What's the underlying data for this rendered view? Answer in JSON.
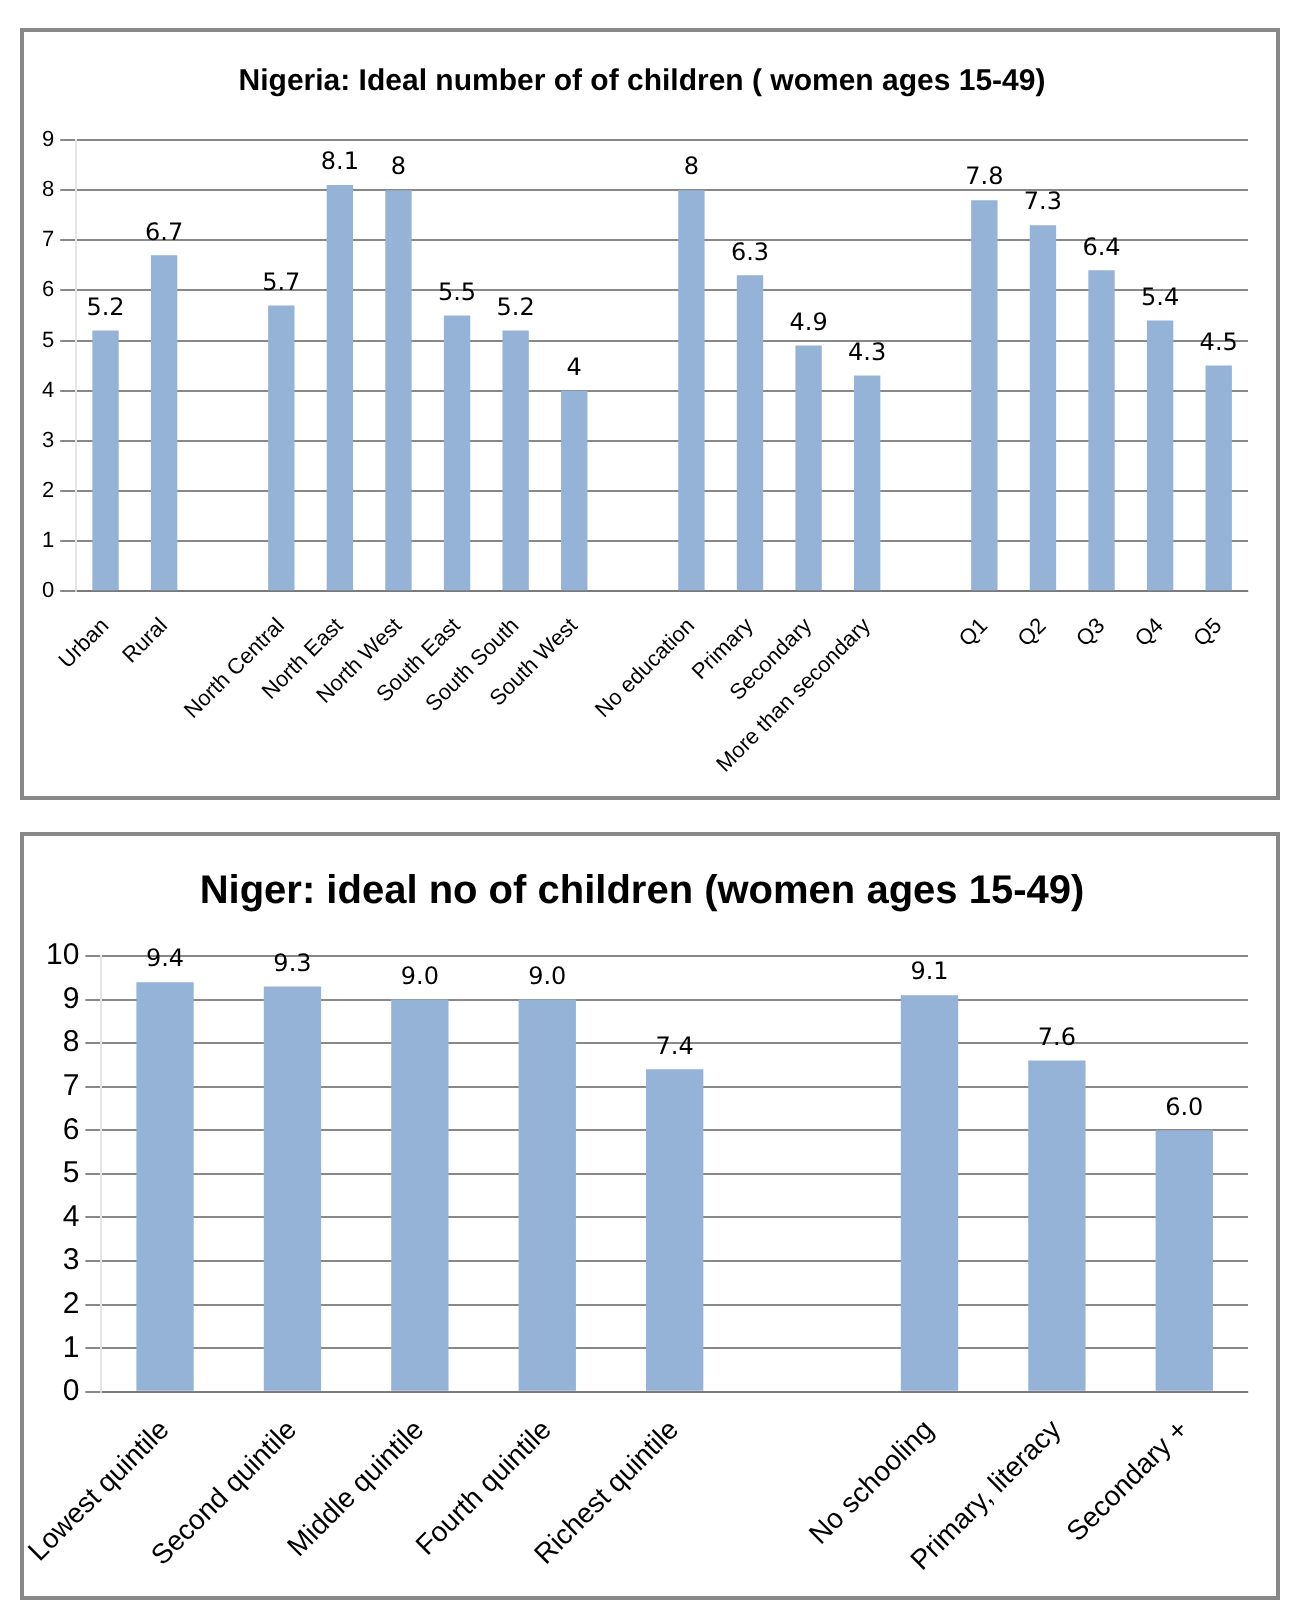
{
  "chart_data": [
    {
      "type": "bar",
      "title": "Nigeria: Ideal number of of children ( women ages 15-49)",
      "categories": [
        "Urban",
        "Rural",
        null,
        "North Central",
        "North East",
        "North West",
        "South East",
        "South South",
        "South West",
        null,
        "No education",
        "Primary",
        "Secondary",
        "More than secondary",
        null,
        "Q1",
        "Q2",
        "Q3",
        "Q4",
        "Q5"
      ],
      "values": [
        5.2,
        6.7,
        null,
        5.7,
        8.1,
        8,
        5.5,
        5.2,
        4,
        null,
        8,
        6.3,
        4.9,
        4.3,
        null,
        7.8,
        7.3,
        6.4,
        5.4,
        4.5
      ],
      "color": "#95b3d7",
      "ylim": [
        0,
        9
      ],
      "yticks": [
        0,
        1,
        2,
        3,
        4,
        5,
        6,
        7,
        8,
        9
      ],
      "grid": "y",
      "data_labels": true
    },
    {
      "type": "bar",
      "title": "Niger: ideal no of children (women ages 15-49)",
      "categories": [
        "Lowest quintile",
        "Second quintile",
        "Middle quintile",
        "Fourth quintile",
        "Richest quintile",
        null,
        "No schooling",
        "Primary, literacy",
        "Secondary +"
      ],
      "values": [
        9.4,
        9.3,
        9.0,
        9.0,
        7.4,
        null,
        9.1,
        7.6,
        6.0
      ],
      "value_labels": [
        "9.4",
        "9.3",
        "9.0",
        "9.0",
        "7.4",
        null,
        "9.1",
        "7.6",
        "6.0"
      ],
      "color": "#95b3d7",
      "ylim": [
        0,
        10
      ],
      "yticks": [
        0,
        1,
        2,
        3,
        4,
        5,
        6,
        7,
        8,
        9,
        10
      ],
      "grid": "y"
    }
  ]
}
